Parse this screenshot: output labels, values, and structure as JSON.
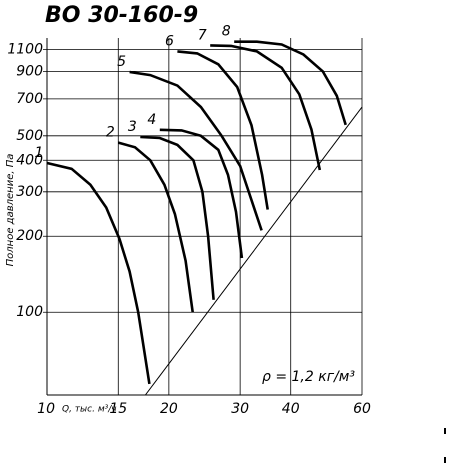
{
  "chart_data": {
    "type": "line",
    "title": "ВО 30-160-9",
    "xlabel": "Q, тыс. м³/ч",
    "ylabel": "Полное давление, Па",
    "annotation": "ρ = 1,2 кг/м³",
    "log_x": true,
    "log_y": true,
    "grid": true,
    "color": "#000000",
    "xlim": [
      10,
      60
    ],
    "ylim": [
      47,
      1220
    ],
    "xticks": [
      10,
      15,
      20,
      30,
      40,
      60
    ],
    "yticks": [
      100,
      200,
      300,
      400,
      500,
      700,
      900,
      1100
    ],
    "limit_line": {
      "x": [
        17.5,
        60
      ],
      "y": [
        47,
        650
      ]
    },
    "series": [
      {
        "name": "1",
        "x": [
          10,
          11.5,
          12.8,
          14,
          15.1,
          16,
          16.8,
          17.9
        ],
        "values": [
          390,
          370,
          320,
          260,
          195,
          145,
          100,
          52
        ]
      },
      {
        "name": "2",
        "x": [
          15,
          16.5,
          18,
          19.5,
          20.7,
          22,
          22.9
        ],
        "values": [
          470,
          450,
          400,
          320,
          245,
          160,
          100
        ]
      },
      {
        "name": "3",
        "x": [
          17,
          19,
          21,
          23,
          24.2,
          25,
          25.8
        ],
        "values": [
          495,
          490,
          460,
          400,
          300,
          200,
          112
        ]
      },
      {
        "name": "4",
        "x": [
          19,
          21.5,
          24,
          26.5,
          28,
          29.3,
          30.3
        ],
        "values": [
          528,
          525,
          500,
          440,
          350,
          250,
          164
        ]
      },
      {
        "name": "5",
        "x": [
          16,
          18,
          21,
          24,
          27,
          30,
          33.9
        ],
        "values": [
          895,
          870,
          790,
          650,
          500,
          380,
          211
        ]
      },
      {
        "name": "6",
        "x": [
          21,
          23.5,
          26.5,
          29.5,
          32,
          34,
          35.1
        ],
        "values": [
          1080,
          1060,
          960,
          780,
          550,
          350,
          255
        ]
      },
      {
        "name": "7",
        "x": [
          25.3,
          28.5,
          33,
          38,
          42,
          45,
          47.2
        ],
        "values": [
          1140,
          1135,
          1080,
          930,
          730,
          530,
          366
        ]
      },
      {
        "name": "8",
        "x": [
          29,
          33,
          38,
          43,
          48,
          52,
          54.7
        ],
        "values": [
          1180,
          1180,
          1150,
          1050,
          900,
          720,
          552
        ]
      }
    ]
  }
}
